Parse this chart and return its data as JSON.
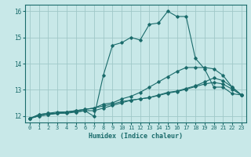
{
  "title": "",
  "xlabel": "Humidex (Indice chaleur)",
  "xlim": [
    -0.5,
    23.5
  ],
  "ylim": [
    11.75,
    16.25
  ],
  "yticks": [
    12,
    13,
    14,
    15,
    16
  ],
  "xticks": [
    0,
    1,
    2,
    3,
    4,
    5,
    6,
    7,
    8,
    9,
    10,
    11,
    12,
    13,
    14,
    15,
    16,
    17,
    18,
    19,
    20,
    21,
    22,
    23
  ],
  "bg_color": "#c8e8e8",
  "grid_color": "#a0c8c8",
  "line_color": "#1a6b6b",
  "lines": [
    [
      11.9,
      12.05,
      12.1,
      12.1,
      12.15,
      12.15,
      12.2,
      11.98,
      13.55,
      14.7,
      14.8,
      15.0,
      14.9,
      15.5,
      15.55,
      16.0,
      15.8,
      15.8,
      14.2,
      13.8,
      13.1,
      13.1,
      12.85,
      12.8
    ],
    [
      11.9,
      12.05,
      12.1,
      12.15,
      12.15,
      12.2,
      12.25,
      12.3,
      12.45,
      12.5,
      12.65,
      12.75,
      12.9,
      13.1,
      13.3,
      13.5,
      13.7,
      13.85,
      13.85,
      13.85,
      13.8,
      13.55,
      13.1,
      12.8
    ],
    [
      11.9,
      12.0,
      12.05,
      12.1,
      12.1,
      12.15,
      12.2,
      12.2,
      12.3,
      12.4,
      12.5,
      12.6,
      12.65,
      12.7,
      12.8,
      12.9,
      12.95,
      13.05,
      13.15,
      13.3,
      13.45,
      13.35,
      13.1,
      12.8
    ],
    [
      11.9,
      12.0,
      12.05,
      12.1,
      12.15,
      12.2,
      12.25,
      12.3,
      12.38,
      12.45,
      12.55,
      12.6,
      12.65,
      12.7,
      12.78,
      12.87,
      12.93,
      13.02,
      13.12,
      13.22,
      13.28,
      13.22,
      13.02,
      12.8
    ]
  ],
  "figsize": [
    3.2,
    2.0
  ],
  "dpi": 100
}
